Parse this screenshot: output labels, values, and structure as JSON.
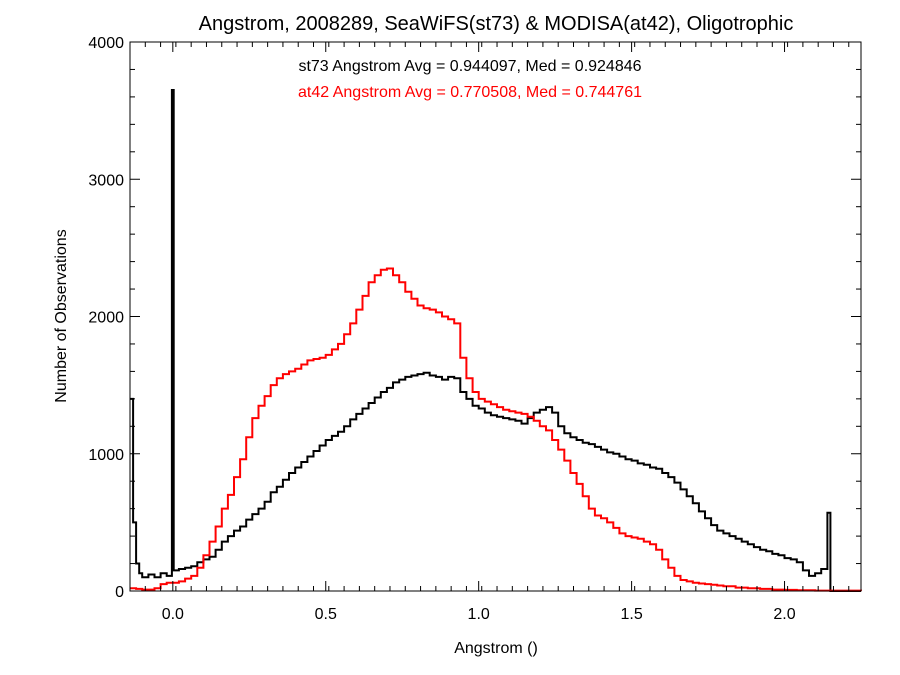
{
  "chart_data": {
    "type": "line",
    "title": "Angstrom, 2008289, SeaWiFS(st73) & MODISA(at42), Oligotrophic",
    "xlabel": "Angstrom ()",
    "ylabel": "Number of Observations",
    "xlim": [
      -0.14,
      2.25
    ],
    "ylim": [
      0,
      4000
    ],
    "x_ticks": [
      {
        "value": 0.0,
        "label": "0.0"
      },
      {
        "value": 0.5,
        "label": "0.5"
      },
      {
        "value": 1.0,
        "label": "1.0"
      },
      {
        "value": 1.5,
        "label": "1.5"
      },
      {
        "value": 2.0,
        "label": "2.0"
      }
    ],
    "y_ticks": [
      {
        "value": 0,
        "label": "0"
      },
      {
        "value": 1000,
        "label": "1000"
      },
      {
        "value": 2000,
        "label": "2000"
      },
      {
        "value": 3000,
        "label": "3000"
      },
      {
        "value": 4000,
        "label": "4000"
      }
    ],
    "grid": false,
    "annotations": [
      {
        "text": "st73 Angstrom Avg = 0.944097, Med = 0.924846",
        "color": "#000000"
      },
      {
        "text": "at42 Angstrom Avg = 0.770508, Med = 0.744761",
        "color": "#ff0000"
      }
    ],
    "series": [
      {
        "color": "#000000",
        "step": true,
        "points": [
          [
            -0.14,
            1400
          ],
          [
            -0.13,
            500
          ],
          [
            -0.12,
            200
          ],
          [
            -0.11,
            130
          ],
          [
            -0.1,
            100
          ],
          [
            -0.08,
            120
          ],
          [
            -0.06,
            100
          ],
          [
            -0.04,
            130
          ],
          [
            -0.02,
            110
          ],
          [
            -0.005,
            110
          ],
          [
            -0.003,
            3650
          ],
          [
            0.0,
            3650
          ],
          [
            0.003,
            150
          ],
          [
            0.02,
            160
          ],
          [
            0.04,
            170
          ],
          [
            0.06,
            180
          ],
          [
            0.08,
            210
          ],
          [
            0.1,
            230
          ],
          [
            0.12,
            250
          ],
          [
            0.14,
            300
          ],
          [
            0.16,
            360
          ],
          [
            0.18,
            400
          ],
          [
            0.2,
            440
          ],
          [
            0.22,
            470
          ],
          [
            0.24,
            520
          ],
          [
            0.26,
            560
          ],
          [
            0.28,
            600
          ],
          [
            0.3,
            650
          ],
          [
            0.32,
            720
          ],
          [
            0.34,
            760
          ],
          [
            0.36,
            810
          ],
          [
            0.38,
            860
          ],
          [
            0.4,
            900
          ],
          [
            0.42,
            940
          ],
          [
            0.44,
            980
          ],
          [
            0.46,
            1020
          ],
          [
            0.48,
            1060
          ],
          [
            0.5,
            1100
          ],
          [
            0.52,
            1130
          ],
          [
            0.54,
            1160
          ],
          [
            0.56,
            1200
          ],
          [
            0.58,
            1250
          ],
          [
            0.6,
            1290
          ],
          [
            0.62,
            1330
          ],
          [
            0.64,
            1370
          ],
          [
            0.66,
            1410
          ],
          [
            0.68,
            1450
          ],
          [
            0.7,
            1480
          ],
          [
            0.72,
            1520
          ],
          [
            0.74,
            1540
          ],
          [
            0.76,
            1560
          ],
          [
            0.78,
            1570
          ],
          [
            0.8,
            1580
          ],
          [
            0.82,
            1590
          ],
          [
            0.84,
            1570
          ],
          [
            0.86,
            1560
          ],
          [
            0.88,
            1540
          ],
          [
            0.9,
            1560
          ],
          [
            0.92,
            1550
          ],
          [
            0.94,
            1450
          ],
          [
            0.96,
            1400
          ],
          [
            0.98,
            1350
          ],
          [
            1.0,
            1330
          ],
          [
            1.02,
            1300
          ],
          [
            1.04,
            1280
          ],
          [
            1.06,
            1270
          ],
          [
            1.08,
            1260
          ],
          [
            1.1,
            1250
          ],
          [
            1.12,
            1240
          ],
          [
            1.14,
            1220
          ],
          [
            1.16,
            1260
          ],
          [
            1.18,
            1300
          ],
          [
            1.2,
            1320
          ],
          [
            1.22,
            1340
          ],
          [
            1.24,
            1300
          ],
          [
            1.26,
            1200
          ],
          [
            1.28,
            1150
          ],
          [
            1.3,
            1120
          ],
          [
            1.32,
            1100
          ],
          [
            1.34,
            1080
          ],
          [
            1.36,
            1070
          ],
          [
            1.38,
            1050
          ],
          [
            1.4,
            1030
          ],
          [
            1.42,
            1010
          ],
          [
            1.44,
            1000
          ],
          [
            1.46,
            980
          ],
          [
            1.48,
            960
          ],
          [
            1.5,
            950
          ],
          [
            1.52,
            930
          ],
          [
            1.54,
            920
          ],
          [
            1.56,
            900
          ],
          [
            1.58,
            890
          ],
          [
            1.6,
            860
          ],
          [
            1.62,
            830
          ],
          [
            1.64,
            790
          ],
          [
            1.66,
            740
          ],
          [
            1.68,
            690
          ],
          [
            1.7,
            640
          ],
          [
            1.72,
            580
          ],
          [
            1.74,
            530
          ],
          [
            1.76,
            480
          ],
          [
            1.78,
            440
          ],
          [
            1.8,
            420
          ],
          [
            1.82,
            400
          ],
          [
            1.84,
            380
          ],
          [
            1.86,
            360
          ],
          [
            1.88,
            340
          ],
          [
            1.9,
            320
          ],
          [
            1.92,
            300
          ],
          [
            1.94,
            290
          ],
          [
            1.96,
            270
          ],
          [
            1.98,
            260
          ],
          [
            2.0,
            240
          ],
          [
            2.02,
            230
          ],
          [
            2.04,
            210
          ],
          [
            2.06,
            150
          ],
          [
            2.08,
            110
          ],
          [
            2.1,
            130
          ],
          [
            2.12,
            160
          ],
          [
            2.14,
            570
          ],
          [
            2.145,
            570
          ],
          [
            2.15,
            0
          ],
          [
            2.25,
            0
          ]
        ]
      },
      {
        "color": "#ff0000",
        "step": true,
        "points": [
          [
            -0.14,
            20
          ],
          [
            -0.12,
            15
          ],
          [
            -0.1,
            10
          ],
          [
            -0.08,
            10
          ],
          [
            -0.06,
            20
          ],
          [
            -0.04,
            50
          ],
          [
            -0.02,
            60
          ],
          [
            0.0,
            60
          ],
          [
            0.02,
            70
          ],
          [
            0.04,
            90
          ],
          [
            0.06,
            110
          ],
          [
            0.08,
            170
          ],
          [
            0.1,
            260
          ],
          [
            0.12,
            360
          ],
          [
            0.14,
            470
          ],
          [
            0.16,
            600
          ],
          [
            0.18,
            700
          ],
          [
            0.2,
            830
          ],
          [
            0.22,
            960
          ],
          [
            0.24,
            1120
          ],
          [
            0.26,
            1260
          ],
          [
            0.28,
            1350
          ],
          [
            0.3,
            1420
          ],
          [
            0.32,
            1500
          ],
          [
            0.34,
            1550
          ],
          [
            0.36,
            1580
          ],
          [
            0.38,
            1600
          ],
          [
            0.4,
            1620
          ],
          [
            0.42,
            1650
          ],
          [
            0.44,
            1680
          ],
          [
            0.46,
            1690
          ],
          [
            0.48,
            1700
          ],
          [
            0.5,
            1720
          ],
          [
            0.52,
            1760
          ],
          [
            0.54,
            1800
          ],
          [
            0.56,
            1870
          ],
          [
            0.58,
            1950
          ],
          [
            0.6,
            2050
          ],
          [
            0.62,
            2150
          ],
          [
            0.64,
            2250
          ],
          [
            0.66,
            2300
          ],
          [
            0.68,
            2340
          ],
          [
            0.7,
            2350
          ],
          [
            0.72,
            2300
          ],
          [
            0.74,
            2250
          ],
          [
            0.76,
            2180
          ],
          [
            0.78,
            2130
          ],
          [
            0.8,
            2080
          ],
          [
            0.82,
            2060
          ],
          [
            0.84,
            2050
          ],
          [
            0.86,
            2030
          ],
          [
            0.88,
            2000
          ],
          [
            0.9,
            1980
          ],
          [
            0.92,
            1950
          ],
          [
            0.94,
            1700
          ],
          [
            0.96,
            1550
          ],
          [
            0.98,
            1450
          ],
          [
            1.0,
            1400
          ],
          [
            1.02,
            1380
          ],
          [
            1.04,
            1360
          ],
          [
            1.06,
            1340
          ],
          [
            1.08,
            1320
          ],
          [
            1.1,
            1310
          ],
          [
            1.12,
            1300
          ],
          [
            1.14,
            1290
          ],
          [
            1.16,
            1270
          ],
          [
            1.18,
            1240
          ],
          [
            1.2,
            1200
          ],
          [
            1.22,
            1170
          ],
          [
            1.24,
            1100
          ],
          [
            1.26,
            1030
          ],
          [
            1.28,
            950
          ],
          [
            1.3,
            860
          ],
          [
            1.32,
            780
          ],
          [
            1.34,
            690
          ],
          [
            1.36,
            600
          ],
          [
            1.38,
            550
          ],
          [
            1.4,
            530
          ],
          [
            1.42,
            500
          ],
          [
            1.44,
            460
          ],
          [
            1.46,
            420
          ],
          [
            1.48,
            400
          ],
          [
            1.5,
            390
          ],
          [
            1.52,
            380
          ],
          [
            1.54,
            360
          ],
          [
            1.56,
            340
          ],
          [
            1.58,
            300
          ],
          [
            1.6,
            230
          ],
          [
            1.62,
            170
          ],
          [
            1.64,
            110
          ],
          [
            1.66,
            80
          ],
          [
            1.68,
            70
          ],
          [
            1.7,
            60
          ],
          [
            1.72,
            55
          ],
          [
            1.74,
            50
          ],
          [
            1.76,
            45
          ],
          [
            1.78,
            40
          ],
          [
            1.8,
            35
          ],
          [
            1.84,
            25
          ],
          [
            1.88,
            20
          ],
          [
            1.92,
            15
          ],
          [
            1.96,
            10
          ],
          [
            2.0,
            8
          ],
          [
            2.04,
            5
          ],
          [
            2.1,
            3
          ],
          [
            2.25,
            2
          ]
        ]
      }
    ]
  }
}
